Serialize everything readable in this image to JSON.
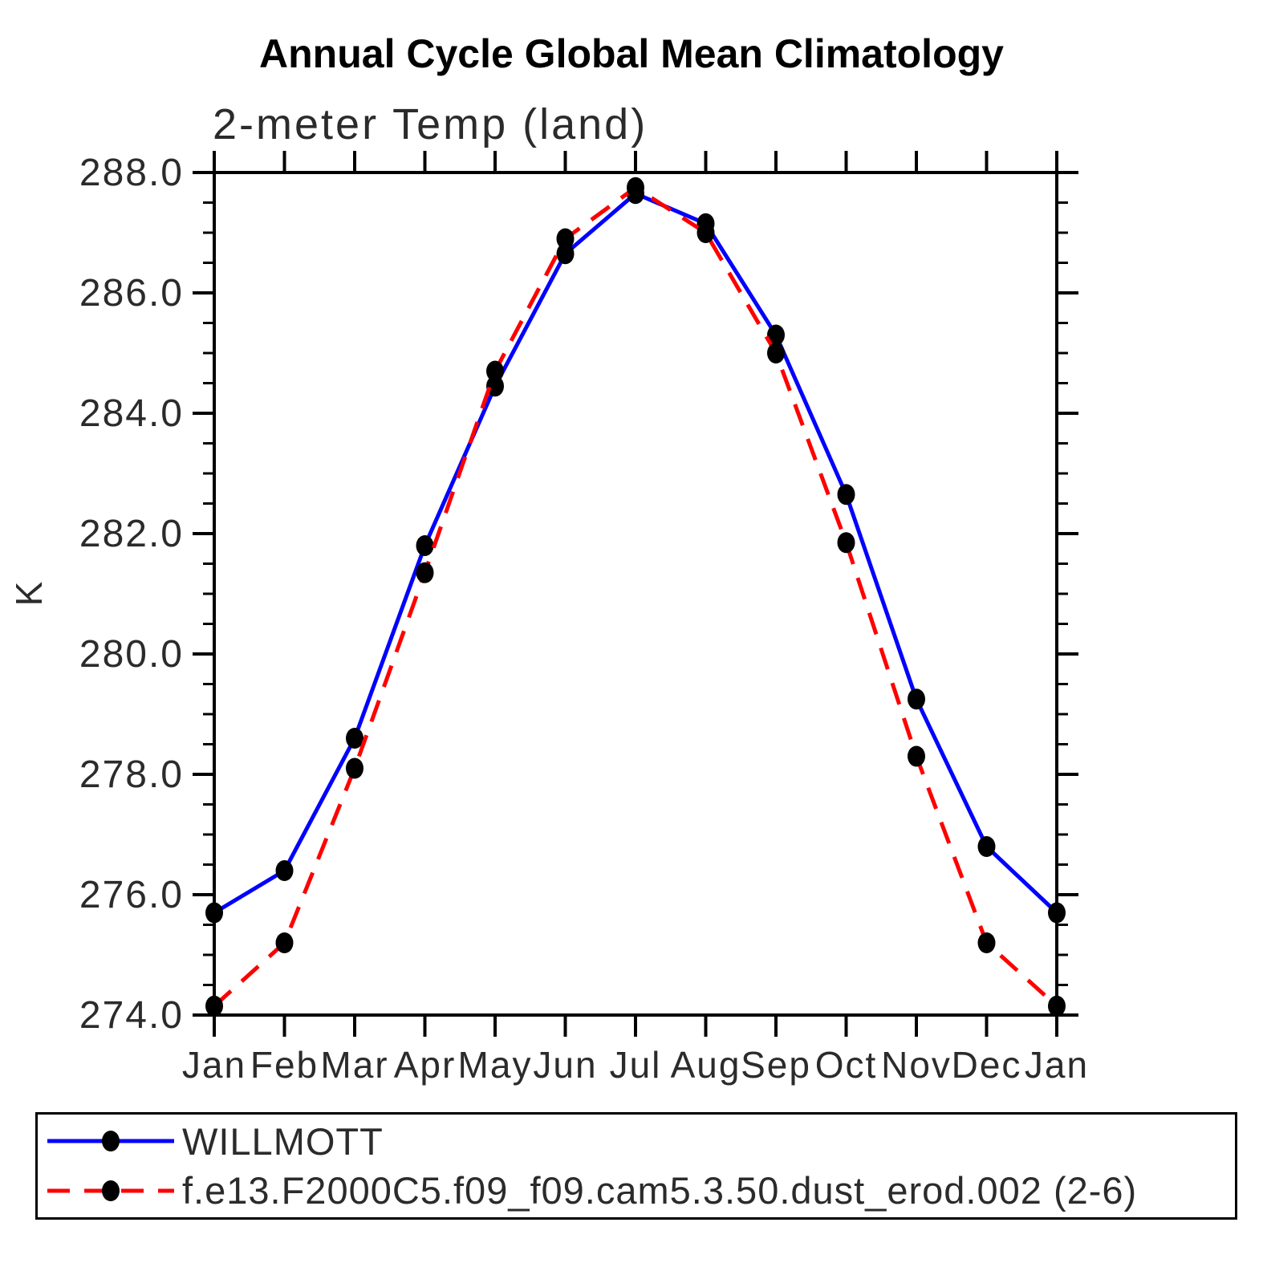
{
  "page": {
    "title": "Annual Cycle Global Mean Climatology",
    "subtitle": "2-meter Temp (land)"
  },
  "chart_data": {
    "type": "line",
    "title": "Annual Cycle Global Mean Climatology",
    "subtitle": "2-meter Temp (land)",
    "xlabel": "",
    "ylabel": "K",
    "categories": [
      "Jan",
      "Feb",
      "Mar",
      "Apr",
      "May",
      "Jun",
      "Jul",
      "Aug",
      "Sep",
      "Oct",
      "Nov",
      "Dec",
      "Jan"
    ],
    "ylim": [
      274.0,
      288.0
    ],
    "ytick_major_step": 2.0,
    "ytick_minor_step": 0.5,
    "ytick_labels": [
      "274.0",
      "276.0",
      "278.0",
      "280.0",
      "282.0",
      "284.0",
      "286.0",
      "288.0"
    ],
    "grid": false,
    "legend_position": "bottom",
    "series": [
      {
        "name": "WILLMOTT",
        "color": "#0000ff",
        "line_style": "solid",
        "marker": "filled-circle",
        "marker_color": "#000000",
        "values": [
          275.7,
          276.4,
          278.6,
          281.8,
          284.45,
          286.65,
          287.65,
          287.15,
          285.3,
          282.65,
          279.25,
          276.8,
          275.7
        ]
      },
      {
        "name": "f.e13.F2000C5.f09_f09.cam5.3.50.dust_erod.002 (2-6)",
        "color": "#ff0000",
        "line_style": "dashed",
        "marker": "filled-circle",
        "marker_color": "#000000",
        "values": [
          274.15,
          275.2,
          278.1,
          281.35,
          284.7,
          286.9,
          287.75,
          287.0,
          285.0,
          281.85,
          278.3,
          275.2,
          274.15
        ]
      }
    ]
  }
}
